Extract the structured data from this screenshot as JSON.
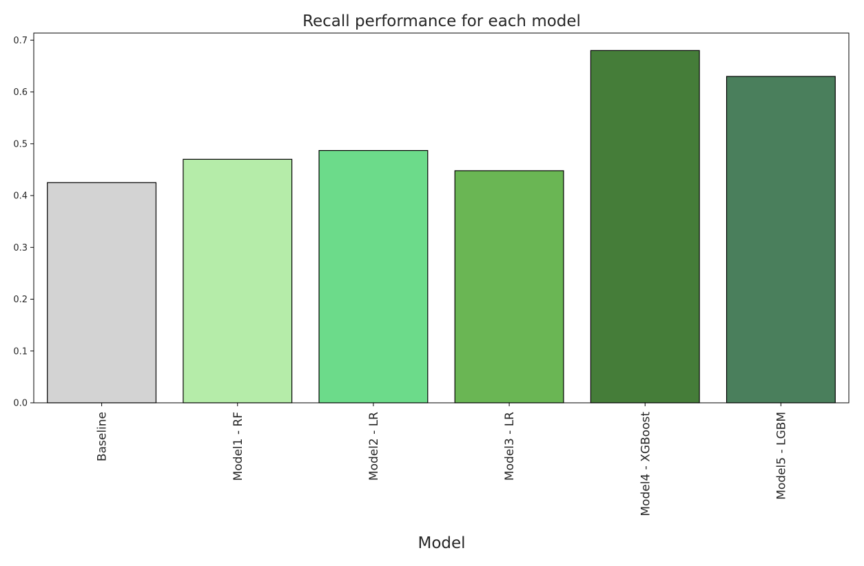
{
  "chart_data": {
    "type": "bar",
    "title": "Recall performance for each model",
    "xlabel": "Model",
    "ylabel": "",
    "categories": [
      "Baseline",
      "Model1 - RF",
      "Model2 - LR",
      "Model3 - LR",
      "Model4 - XGBoost",
      "Model5 - LGBM"
    ],
    "values": [
      0.425,
      0.47,
      0.487,
      0.448,
      0.68,
      0.63
    ],
    "colors": [
      "#d3d3d3",
      "#b5eca9",
      "#6cdb8a",
      "#6ab654",
      "#457d39",
      "#4a7f5c"
    ],
    "edge_color": "#000000",
    "yticks": [
      "0.0",
      "0.1",
      "0.2",
      "0.3",
      "0.4",
      "0.5",
      "0.6",
      "0.7"
    ],
    "ylim": [
      0,
      0.7137
    ],
    "grid": false,
    "legend": "none"
  }
}
